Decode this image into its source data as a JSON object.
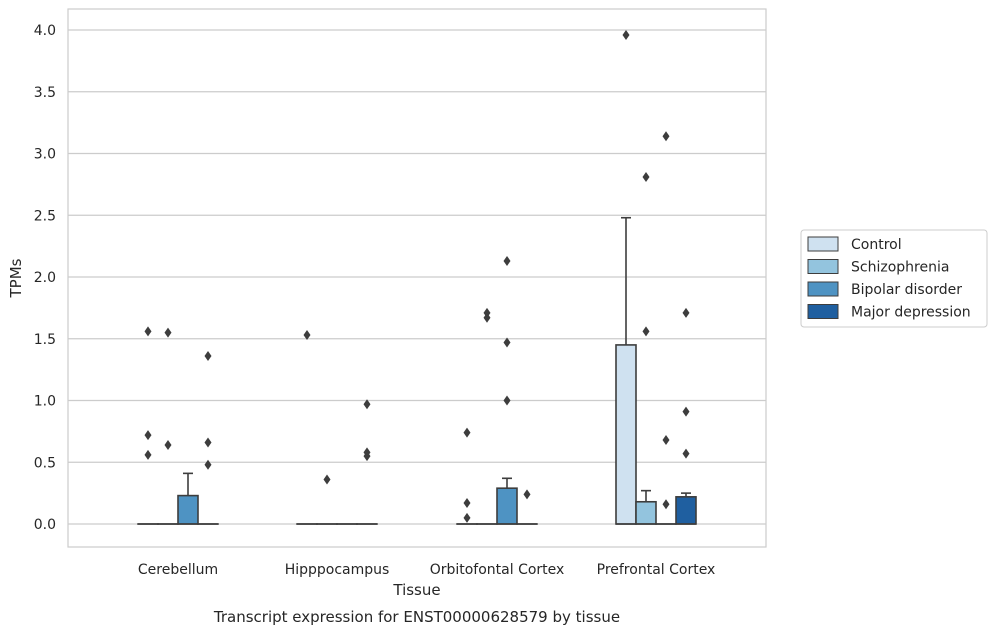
{
  "chart_data": {
    "type": "box",
    "title": "",
    "caption": "Transcript expression for ENST00000628579 by tissue",
    "xlabel": "Tissue",
    "ylabel": "TPMs",
    "ylim": [
      -0.2,
      4.17
    ],
    "yticks": [
      "0.0",
      "0.5",
      "1.0",
      "1.5",
      "2.0",
      "2.5",
      "3.0",
      "3.5",
      "4.0"
    ],
    "grid": "horizontal",
    "legend_placement": "right, outside",
    "categories": [
      "Cerebellum",
      "Hipppocampus",
      "Orbitofontal Cortex",
      "Prefrontal Cortex"
    ],
    "series": [
      {
        "name": "Control",
        "color": "#cfe1f0"
      },
      {
        "name": "Schizophrenia",
        "color": "#93c4de"
      },
      {
        "name": "Bipolar disorder",
        "color": "#4e93c3"
      },
      {
        "name": "Major depression",
        "color": "#1f5fa0"
      }
    ],
    "boxes": [
      {
        "category": "Cerebellum",
        "series": "Control",
        "q1": 0,
        "median": 0,
        "q3": 0,
        "whisker_low": 0,
        "whisker_high": 0,
        "outliers": [
          1.56,
          0.72,
          0.56
        ]
      },
      {
        "category": "Cerebellum",
        "series": "Schizophrenia",
        "q1": 0,
        "median": 0,
        "q3": 0,
        "whisker_low": 0,
        "whisker_high": 0,
        "outliers": [
          1.55,
          0.64
        ]
      },
      {
        "category": "Cerebellum",
        "series": "Bipolar disorder",
        "q1": 0,
        "median": 0,
        "q3": 0.23,
        "whisker_low": 0,
        "whisker_high": 0.41,
        "outliers": []
      },
      {
        "category": "Cerebellum",
        "series": "Major depression",
        "q1": 0,
        "median": 0,
        "q3": 0,
        "whisker_low": 0,
        "whisker_high": 0,
        "outliers": [
          1.36,
          0.66,
          0.48
        ]
      },
      {
        "category": "Hipppocampus",
        "series": "Control",
        "q1": 0,
        "median": 0,
        "q3": 0,
        "whisker_low": 0,
        "whisker_high": 0,
        "outliers": [
          1.53
        ]
      },
      {
        "category": "Hipppocampus",
        "series": "Schizophrenia",
        "q1": 0,
        "median": 0,
        "q3": 0,
        "whisker_low": 0,
        "whisker_high": 0,
        "outliers": [
          0.36
        ]
      },
      {
        "category": "Hipppocampus",
        "series": "Bipolar disorder",
        "q1": 0,
        "median": 0,
        "q3": 0,
        "whisker_low": 0,
        "whisker_high": 0,
        "outliers": []
      },
      {
        "category": "Hipppocampus",
        "series": "Major depression",
        "q1": 0,
        "median": 0,
        "q3": 0,
        "whisker_low": 0,
        "whisker_high": 0,
        "outliers": [
          0.97,
          0.58,
          0.55
        ]
      },
      {
        "category": "Orbitofontal Cortex",
        "series": "Control",
        "q1": 0,
        "median": 0,
        "q3": 0,
        "whisker_low": 0,
        "whisker_high": 0,
        "outliers": [
          0.74,
          0.17,
          0.05
        ]
      },
      {
        "category": "Orbitofontal Cortex",
        "series": "Schizophrenia",
        "q1": 0,
        "median": 0,
        "q3": 0,
        "whisker_low": 0,
        "whisker_high": 0,
        "outliers": [
          1.71,
          1.67
        ]
      },
      {
        "category": "Orbitofontal Cortex",
        "series": "Bipolar disorder",
        "q1": 0,
        "median": 0,
        "q3": 0.29,
        "whisker_low": 0,
        "whisker_high": 0.37,
        "outliers": [
          2.13,
          1.47,
          1.0
        ]
      },
      {
        "category": "Orbitofontal Cortex",
        "series": "Major depression",
        "q1": 0,
        "median": 0,
        "q3": 0,
        "whisker_low": 0,
        "whisker_high": 0,
        "outliers": [
          0.24
        ]
      },
      {
        "category": "Prefrontal Cortex",
        "series": "Control",
        "q1": 0,
        "median": 0,
        "q3": 1.45,
        "whisker_low": 0,
        "whisker_high": 2.48,
        "outliers": [
          3.96
        ]
      },
      {
        "category": "Prefrontal Cortex",
        "series": "Schizophrenia",
        "q1": 0,
        "median": 0,
        "q3": 0.18,
        "whisker_low": 0,
        "whisker_high": 0.27,
        "outliers": [
          2.81,
          1.56
        ]
      },
      {
        "category": "Prefrontal Cortex",
        "series": "Bipolar disorder",
        "q1": 0,
        "median": 0,
        "q3": 0,
        "whisker_low": 0,
        "whisker_high": 0,
        "outliers": [
          3.14,
          0.68,
          0.16
        ]
      },
      {
        "category": "Prefrontal Cortex",
        "series": "Major depression",
        "q1": 0,
        "median": 0,
        "q3": 0.22,
        "whisker_low": 0,
        "whisker_high": 0.25,
        "outliers": [
          1.71,
          0.91,
          0.57
        ]
      }
    ]
  }
}
